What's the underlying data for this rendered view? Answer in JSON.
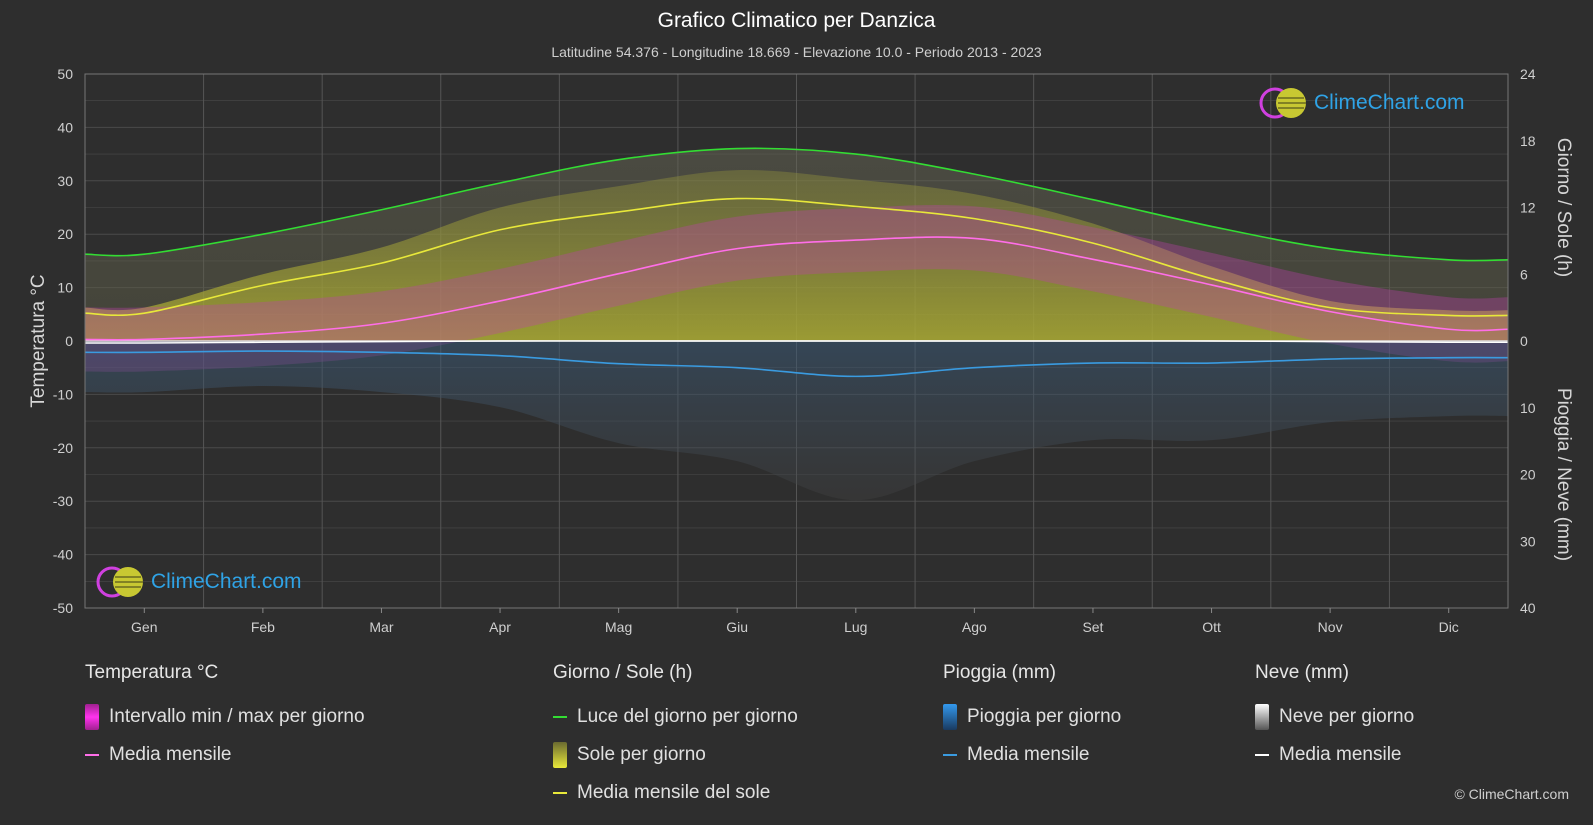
{
  "header": {
    "title": "Grafico Climatico per Danzica",
    "subtitle": "Latitudine 54.376 - Longitudine 18.669 - Elevazione 10.0 - Periodo 2013 - 2023"
  },
  "logo_text": "ClimeChart.com",
  "copyright": "© ClimeChart.com",
  "colors": {
    "background": "#2e2e2e",
    "daylight": "#33dd33",
    "sun_fill": "#c8c832",
    "sun_mean": "#e8e83a",
    "temp_range": "#e033c8",
    "temp_mean": "#ff6ee8",
    "rain": "#2a7fc8",
    "rain_mean": "#3a9be0",
    "snow": "#b0b0b0",
    "snow_mean": "#ffffff"
  },
  "legend": {
    "temperature": {
      "heading": "Temperatura °C",
      "items": [
        "Intervallo min / max per giorno",
        "Media mensile"
      ]
    },
    "daylight": {
      "heading": "Giorno / Sole (h)",
      "items": [
        "Luce del giorno per giorno",
        "Sole per giorno",
        "Media mensile del sole"
      ]
    },
    "rain": {
      "heading": "Pioggia (mm)",
      "items": [
        "Pioggia per giorno",
        "Media mensile"
      ]
    },
    "snow": {
      "heading": "Neve (mm)",
      "items": [
        "Neve per giorno",
        "Media mensile"
      ]
    }
  },
  "chart_data": {
    "type": "line",
    "categories": [
      "Gen",
      "Feb",
      "Mar",
      "Apr",
      "Mag",
      "Giu",
      "Lug",
      "Ago",
      "Set",
      "Ott",
      "Nov",
      "Dic"
    ],
    "y_left": {
      "label": "Temperatura °C",
      "range": [
        -50,
        50
      ],
      "ticks": [
        50,
        40,
        30,
        20,
        10,
        0,
        -10,
        -20,
        -30,
        -40,
        -50
      ]
    },
    "y_right_top": {
      "label": "Giorno / Sole (h)",
      "range": [
        0,
        24
      ],
      "ticks": [
        24,
        18,
        12,
        6,
        0
      ]
    },
    "y_right_bottom": {
      "label": "Pioggia / Neve (mm)",
      "range": [
        0,
        40
      ],
      "ticks": [
        0,
        10,
        20,
        30,
        40
      ]
    },
    "grid": true,
    "series": [
      {
        "name": "Luce del giorno per giorno",
        "axis": "hours",
        "values": [
          7.8,
          9.6,
          11.8,
          14.2,
          16.3,
          17.3,
          16.8,
          15.0,
          12.7,
          10.3,
          8.3,
          7.3
        ]
      },
      {
        "name": "Media mensile del sole",
        "axis": "hours",
        "values": [
          2.5,
          5.0,
          7.0,
          10.0,
          11.6,
          12.8,
          12.1,
          11.0,
          8.8,
          5.6,
          3.0,
          2.3
        ]
      },
      {
        "name": "Media mensile",
        "kind": "temperature",
        "axis": "temperature",
        "values": [
          0.3,
          1.3,
          3.3,
          7.5,
          12.6,
          17.3,
          18.9,
          19.2,
          15.3,
          10.5,
          5.5,
          2.2
        ]
      },
      {
        "name": "Media mensile",
        "kind": "rain",
        "axis": "precipitation",
        "values": [
          1.7,
          1.5,
          1.7,
          2.2,
          3.4,
          4.0,
          5.3,
          4.0,
          3.3,
          3.3,
          2.7,
          2.5
        ]
      },
      {
        "name": "Media mensile",
        "kind": "snow",
        "axis": "precipitation",
        "values": [
          0.3,
          0.2,
          0.1,
          0.0,
          0.0,
          0.0,
          0.0,
          0.0,
          0.0,
          0.0,
          0.1,
          0.2
        ]
      }
    ]
  }
}
